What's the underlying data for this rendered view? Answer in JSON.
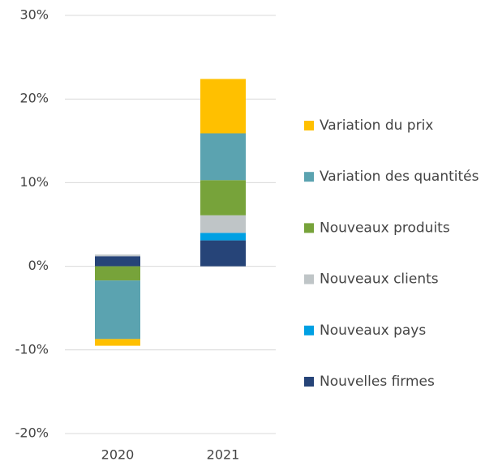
{
  "chart_data": {
    "type": "bar",
    "stacked": true,
    "categories": [
      "2020",
      "2021"
    ],
    "series": [
      {
        "name": "Nouvelles firmes",
        "color": "#264478",
        "values": [
          1.2,
          3.1
        ]
      },
      {
        "name": "Nouveaux pays",
        "color": "#00a0e3",
        "values": [
          0,
          0.9
        ]
      },
      {
        "name": "Nouveaux clients",
        "color": "#bfc5c7",
        "values": [
          0.2,
          2.1
        ]
      },
      {
        "name": "Nouveaux produits",
        "color": "#77a33a",
        "values": [
          -1.7,
          4.2
        ]
      },
      {
        "name": "Variation des quantités",
        "color": "#5ba3b0",
        "values": [
          -7.0,
          5.6
        ]
      },
      {
        "name": "Variation du prix",
        "color": "#ffc000",
        "values": [
          -0.8,
          6.5
        ]
      }
    ],
    "ylim": [
      -20,
      30
    ],
    "yticks": [
      {
        "value": -20,
        "label": "-20%"
      },
      {
        "value": -10,
        "label": "-10%"
      },
      {
        "value": 0,
        "label": "0%"
      },
      {
        "value": 10,
        "label": "10%"
      },
      {
        "value": 20,
        "label": "20%"
      },
      {
        "value": 30,
        "label": "30%"
      }
    ],
    "grid": true,
    "legend": "right"
  }
}
